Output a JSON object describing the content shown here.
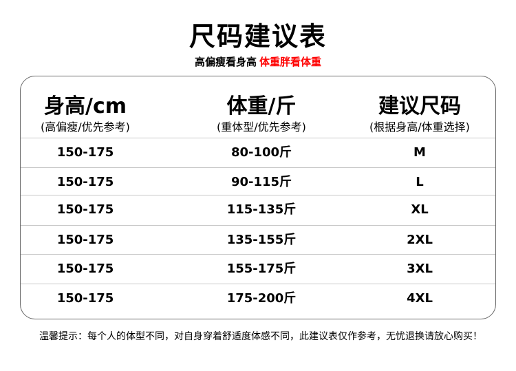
{
  "title": "尺码建议表",
  "subtitle": {
    "black": "高偏瘦看身高",
    "red": "体重胖看体重",
    "red_color": "#ff0000"
  },
  "table": {
    "headers": [
      {
        "main": "身高/cm",
        "sub": "(高偏瘦/优先参考)"
      },
      {
        "main": "体重/斤",
        "sub": "(重体型/优先参考)"
      },
      {
        "main": "建议尺码",
        "sub": "(根据身高/体重选择)"
      }
    ],
    "rows": [
      [
        "150-175",
        "80-100斤",
        "M"
      ],
      [
        "150-175",
        "90-115斤",
        "L"
      ],
      [
        "150-175",
        "115-135斤",
        "XL"
      ],
      [
        "150-175",
        "135-155斤",
        "2XL"
      ],
      [
        "150-175",
        "155-175斤",
        "3XL"
      ],
      [
        "150-175",
        "175-200斤",
        "4XL"
      ]
    ]
  },
  "note": "温馨提示：每个人的体型不同，对自身穿着舒适度体感不同，此建议表仅作参考，无忧退换请放心购买！"
}
